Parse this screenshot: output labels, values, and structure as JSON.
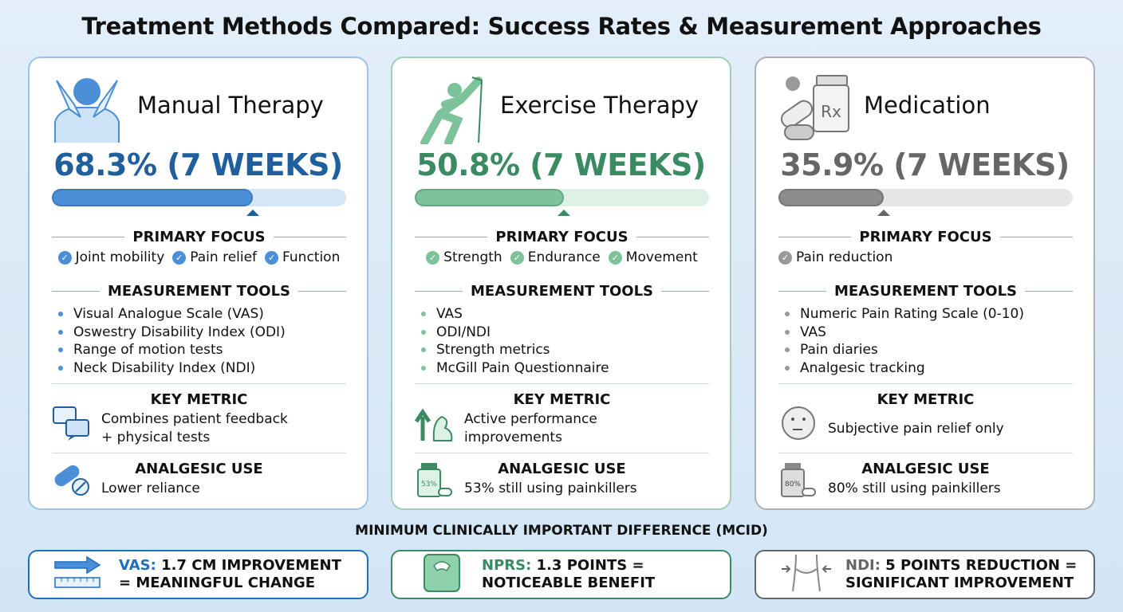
{
  "title": "Treatment Methods Compared: Success Rates & Measurement Approaches",
  "labels": {
    "primary_focus": "PRIMARY FOCUS",
    "measurement_tools": "MEASUREMENT TOOLS",
    "key_metric": "KEY METRIC",
    "analgesic_use": "ANALGESIC USE"
  },
  "cards": [
    {
      "name": "Manual Therapy",
      "rate": "68.3% (7 WEEKS)",
      "success_percent": 68.3,
      "icon": "massage-shoulders-icon",
      "colors": {
        "text": "#1f5f9e",
        "fill": "#4a8fd8",
        "track": "#d5e7f7",
        "border": "#9cc3e6",
        "accent": "#4a8fd8"
      },
      "focus": [
        "Joint mobility",
        "Pain relief",
        "Function"
      ],
      "tools": [
        "Visual Analogue Scale (VAS)",
        "Oswestry Disability Index (ODI)",
        "Range of motion tests",
        "Neck Disability Index (NDI)"
      ],
      "key_metric": [
        "Combines patient feedback",
        "+ physical tests"
      ],
      "key_metric_icon": "chat-bubbles-icon",
      "analgesic": "Lower reliance",
      "analgesic_icon": "pill-capsule-icon"
    },
    {
      "name": "Exercise Therapy",
      "rate": "50.8% (7 WEEKS)",
      "success_percent": 50.8,
      "icon": "stretching-person-icon",
      "colors": {
        "text": "#3a8a62",
        "fill": "#7cc39c",
        "track": "#dff1e7",
        "border": "#9ed0b5",
        "accent": "#7cc39c"
      },
      "focus": [
        "Strength",
        "Endurance",
        "Movement"
      ],
      "tools": [
        "VAS",
        "ODI/NDI",
        "Strength metrics",
        "McGill Pain Questionnaire"
      ],
      "key_metric": [
        "Active performance",
        "improvements"
      ],
      "key_metric_icon": "arm-flex-arrow-icon",
      "analgesic": "53% still using painkillers",
      "analgesic_icon": "pill-bottle-icon",
      "analgesic_icon_label": "53%"
    },
    {
      "name": "Medication",
      "rate": "35.9% (7 WEEKS)",
      "success_percent": 35.9,
      "icon": "pills-rx-bottle-icon",
      "icon_label": "Rx",
      "colors": {
        "text": "#666666",
        "fill": "#8c8c8c",
        "track": "#e6e6e6",
        "border": "#b0b0b0",
        "accent": "#9a9a9a"
      },
      "focus": [
        "Pain reduction"
      ],
      "tools": [
        "Numeric Pain Rating Scale (0-10)",
        "VAS",
        "Pain diaries",
        "Analgesic tracking"
      ],
      "key_metric": [
        "Subjective pain relief only"
      ],
      "key_metric_icon": "thinking-face-icon",
      "analgesic": "80% still using painkillers",
      "analgesic_icon": "pill-bottle-icon",
      "analgesic_icon_label": "80%"
    }
  ],
  "mcid": {
    "title": "MINIMUM CLINICALLY IMPORTANT DIFFERENCE (MCID)",
    "boxes": [
      {
        "key": "VAS:",
        "line1": " 1.7 CM IMPROVEMENT",
        "line2": "= MEANINGFUL CHANGE",
        "icon": "arrow-ruler-icon",
        "color": "#1f6fc0"
      },
      {
        "key": "NPRS:",
        "line1": " 1.3 POINTS =",
        "line2": "NOTICEABLE BENEFIT",
        "icon": "scale-icon",
        "color": "#3a8a62"
      },
      {
        "key": "NDI:",
        "line1": " 5 POINTS REDUCTION =",
        "line2": "SIGNIFICANT IMPROVEMENT",
        "icon": "neck-icon",
        "color": "#666666"
      }
    ]
  }
}
